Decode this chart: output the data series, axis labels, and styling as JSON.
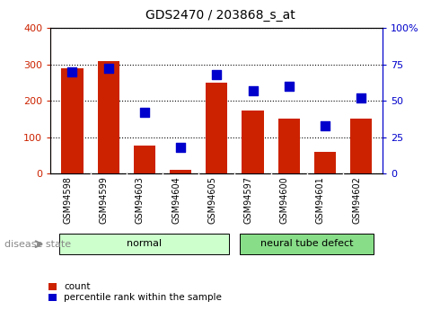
{
  "title": "GDS2470 / 203868_s_at",
  "categories": [
    "GSM94598",
    "GSM94599",
    "GSM94603",
    "GSM94604",
    "GSM94605",
    "GSM94597",
    "GSM94600",
    "GSM94601",
    "GSM94602"
  ],
  "counts": [
    290,
    310,
    77,
    10,
    250,
    172,
    152,
    60,
    152
  ],
  "percentiles": [
    70,
    72,
    42,
    18,
    68,
    57,
    60,
    33,
    52
  ],
  "bar_color": "#cc2200",
  "dot_color": "#0000cc",
  "left_ylim": [
    0,
    400
  ],
  "right_ylim": [
    0,
    100
  ],
  "left_yticks": [
    0,
    100,
    200,
    300,
    400
  ],
  "right_yticks": [
    0,
    25,
    50,
    75,
    100
  ],
  "right_yticklabels": [
    "0",
    "25",
    "50",
    "75",
    "100%"
  ],
  "groups": [
    {
      "label": "normal",
      "start": 0,
      "end": 4,
      "color": "#ccffcc"
    },
    {
      "label": "neural tube defect",
      "start": 5,
      "end": 8,
      "color": "#88dd88"
    }
  ],
  "disease_state_label": "disease state",
  "legend_items": [
    {
      "label": "count",
      "color": "#cc2200"
    },
    {
      "label": "percentile rank within the sample",
      "color": "#0000cc"
    }
  ],
  "tick_color_left": "#cc2200",
  "tick_color_right": "#0000cc",
  "bar_width": 0.6,
  "dot_size": 60,
  "xtick_bg_color": "#cccccc",
  "plot_bg_color": "#ffffff"
}
